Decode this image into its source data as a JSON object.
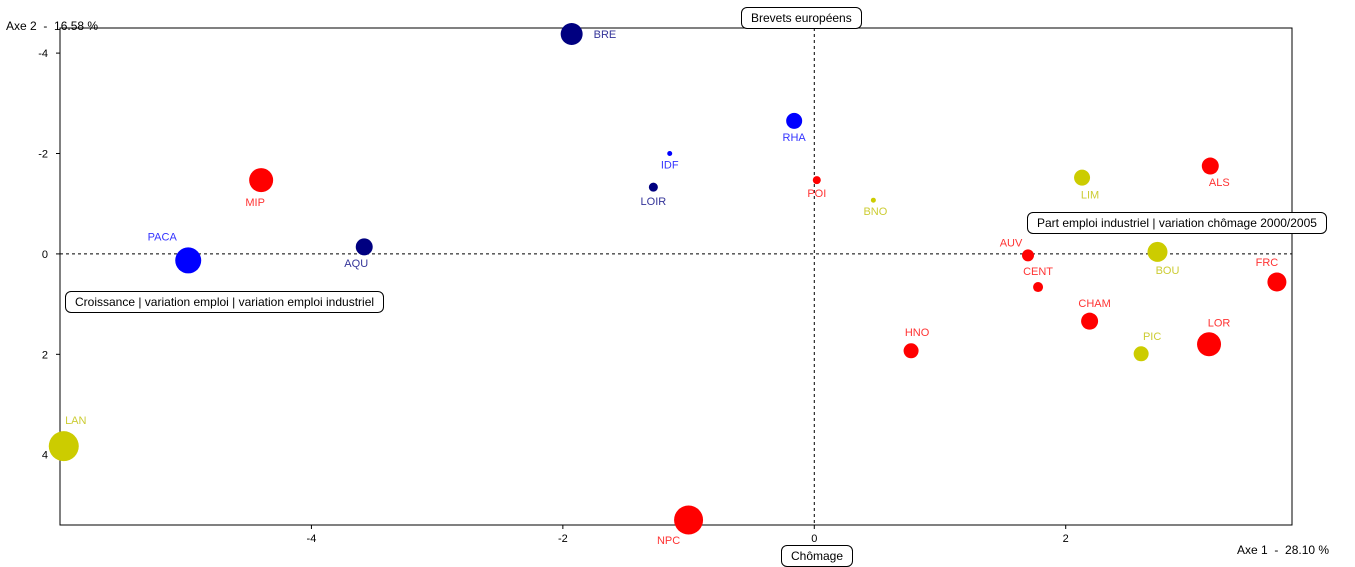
{
  "chart_data": {
    "type": "scatter",
    "x_axis_title": "Axe 1  -  28.10 %",
    "y_axis_title": "Axe 2  -  16.58 %",
    "xlim": [
      -6.0,
      3.8
    ],
    "ylim": [
      -4.5,
      5.4
    ],
    "y_inverted": true,
    "x_ticks": [
      -4,
      -2,
      0,
      2
    ],
    "y_ticks": [
      -4,
      -2,
      0,
      2,
      4
    ],
    "grid": false,
    "colors": {
      "red": "#ff0000",
      "blue": "#0000ff",
      "navy": "#000080",
      "yellow": "#cccc00",
      "label_red": "#ff3333",
      "label_blue": "#3333ff",
      "label_navy": "#333399",
      "label_yellow": "#cccc33"
    },
    "annotations": {
      "top": "Brevets européens",
      "right": "Part emploi industriel | variation chômage 2000/2005",
      "left": "Croissance | variation emploi | variation emploi industriel",
      "bottom": "Chômage"
    },
    "points": [
      {
        "label": "BRE",
        "x": -1.93,
        "y": -4.38,
        "size": 11,
        "color": "navy"
      },
      {
        "label": "RHA",
        "x": -0.16,
        "y": -2.65,
        "size": 8,
        "color": "blue"
      },
      {
        "label": "IDF",
        "x": -1.15,
        "y": -2.0,
        "size": 2.5,
        "color": "blue"
      },
      {
        "label": "LOIR",
        "x": -1.28,
        "y": -1.33,
        "size": 4.5,
        "color": "navy"
      },
      {
        "label": "MIP",
        "x": -4.4,
        "y": -1.47,
        "size": 12,
        "color": "red"
      },
      {
        "label": "PACA",
        "x": -4.98,
        "y": 0.13,
        "size": 13,
        "color": "blue"
      },
      {
        "label": "AQU",
        "x": -3.58,
        "y": -0.14,
        "size": 8.5,
        "color": "navy"
      },
      {
        "label": "POI",
        "x": 0.02,
        "y": -1.47,
        "size": 4,
        "color": "red"
      },
      {
        "label": "BNO",
        "x": 0.47,
        "y": -1.07,
        "size": 2.5,
        "color": "yellow"
      },
      {
        "label": "LIM",
        "x": 2.13,
        "y": -1.52,
        "size": 8,
        "color": "yellow"
      },
      {
        "label": "ALS",
        "x": 3.15,
        "y": -1.75,
        "size": 8.5,
        "color": "red"
      },
      {
        "label": "AUV",
        "x": 1.7,
        "y": 0.03,
        "size": 6,
        "color": "red"
      },
      {
        "label": "BOU",
        "x": 2.73,
        "y": -0.04,
        "size": 10,
        "color": "yellow"
      },
      {
        "label": "FRC",
        "x": 3.68,
        "y": 0.56,
        "size": 9.5,
        "color": "red"
      },
      {
        "label": "CENT",
        "x": 1.78,
        "y": 0.66,
        "size": 5,
        "color": "red"
      },
      {
        "label": "CHAM",
        "x": 2.19,
        "y": 1.34,
        "size": 8.5,
        "color": "red"
      },
      {
        "label": "HNO",
        "x": 0.77,
        "y": 1.93,
        "size": 7.5,
        "color": "red"
      },
      {
        "label": "PIC",
        "x": 2.6,
        "y": 1.99,
        "size": 7.5,
        "color": "yellow"
      },
      {
        "label": "LOR",
        "x": 3.14,
        "y": 1.8,
        "size": 12,
        "color": "red"
      },
      {
        "label": "LAN",
        "x": -5.97,
        "y": 3.83,
        "size": 15,
        "color": "yellow"
      },
      {
        "label": "NPC",
        "x": -1.0,
        "y": 5.3,
        "size": 14.5,
        "color": "red"
      }
    ]
  }
}
